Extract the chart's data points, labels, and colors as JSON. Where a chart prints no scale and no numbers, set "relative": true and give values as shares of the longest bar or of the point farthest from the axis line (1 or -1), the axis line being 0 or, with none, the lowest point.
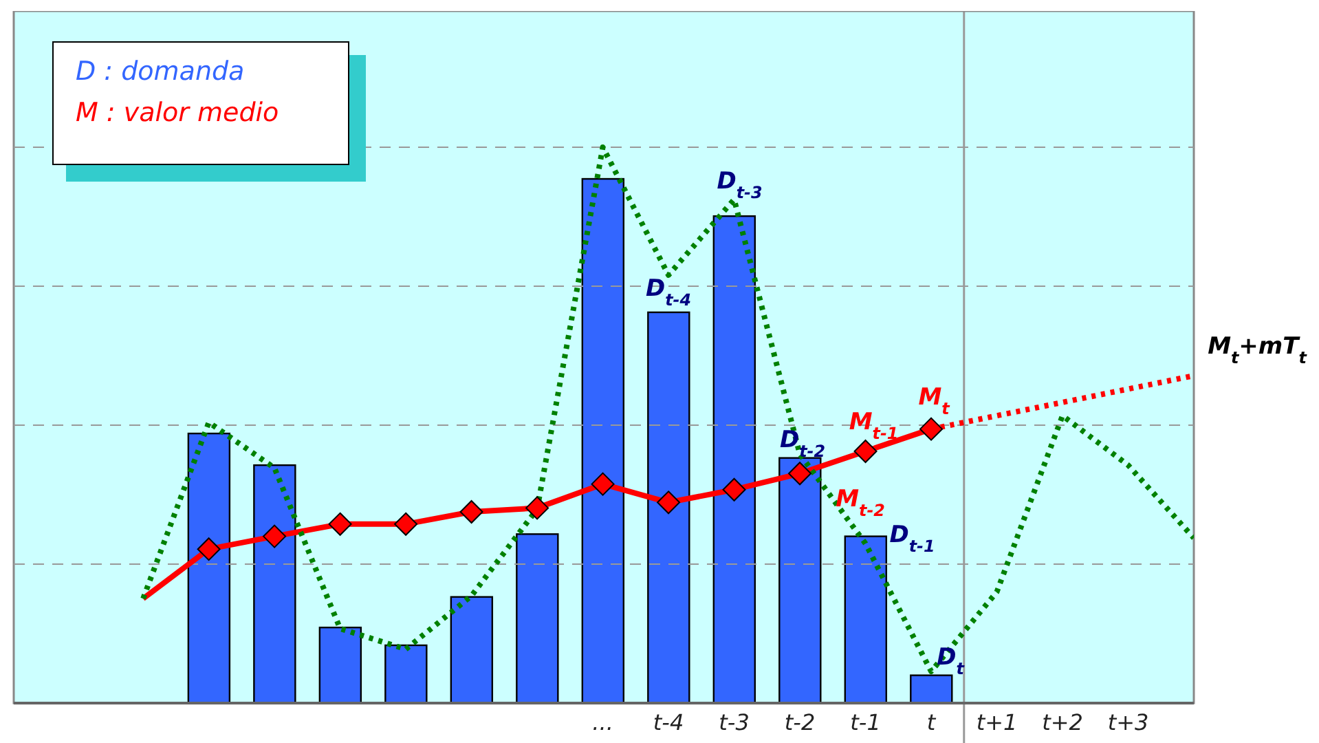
{
  "chart_data": {
    "type": "bar",
    "relative": true,
    "grid": "y",
    "legend": "top left",
    "categories": [
      null,
      null,
      null,
      null,
      null,
      null,
      null,
      "...",
      "t-4",
      "t-3",
      "t-2",
      "t-1",
      "t",
      "t+1",
      "t+2",
      "t+3",
      null
    ],
    "series": [
      {
        "name": "D : domanda",
        "color": "#3366ff",
        "values": [
          null,
          0.485,
          0.428,
          0.136,
          0.104,
          0.191,
          0.304,
          0.943,
          0.703,
          0.876,
          0.441,
          0.3,
          0.05,
          null,
          null,
          null,
          null
        ]
      },
      {
        "type": "line",
        "color": "#ff0000",
        "values": [
          0.188,
          0.277,
          null,
          null,
          null,
          null,
          null,
          null,
          null,
          null,
          null,
          null,
          null,
          null,
          null,
          null,
          null
        ]
      },
      {
        "type": "line",
        "name": "M : valor medio",
        "color": "#ff0000",
        "marker": "diamond",
        "values": [
          null,
          0.277,
          0.3,
          0.322,
          0.322,
          0.344,
          0.351,
          0.394,
          0.361,
          0.384,
          0.413,
          0.453,
          0.493,
          null,
          null,
          null,
          null
        ]
      },
      {
        "type": "line",
        "color": "#ff0000",
        "line_style": "dotted",
        "values": [
          null,
          null,
          null,
          null,
          null,
          null,
          null,
          null,
          null,
          null,
          null,
          null,
          0.493,
          null,
          null,
          null,
          0.589
        ]
      },
      {
        "type": "line",
        "color": "#008000",
        "marker": "none",
        "line_style": "dotted",
        "values": [
          0.188,
          0.505,
          0.423,
          0.134,
          0.097,
          0.193,
          0.349,
          1,
          0.77,
          0.906,
          0.448,
          0.287,
          0.057,
          0.2,
          0.517,
          0.428,
          0.297
        ]
      }
    ],
    "annotations": [
      {
        "text": "D$_{t-4}$",
        "x": "t-4",
        "y": 0.703
      },
      {
        "text": "D$_{t-3}$",
        "x": "t-3",
        "y": 0.876
      },
      {
        "text": "D$_{t-2}$",
        "x": "t-2",
        "y": 0.441
      },
      {
        "text": "D$_{t-1}$",
        "x": "t-1",
        "y": 0.3
      },
      {
        "text": "D$_{t}$",
        "x": "t",
        "y": 0.05
      },
      {
        "text": "M$_{t-2}$",
        "x": "t-2",
        "y": 0.413
      },
      {
        "text": "M$_{t-1}$",
        "x": "t-1",
        "y": 0.453
      },
      {
        "text": "M$_{t}$",
        "x": "t",
        "y": 0.493
      },
      "M$_{t}$+mT$_{t}$"
    ]
  }
}
